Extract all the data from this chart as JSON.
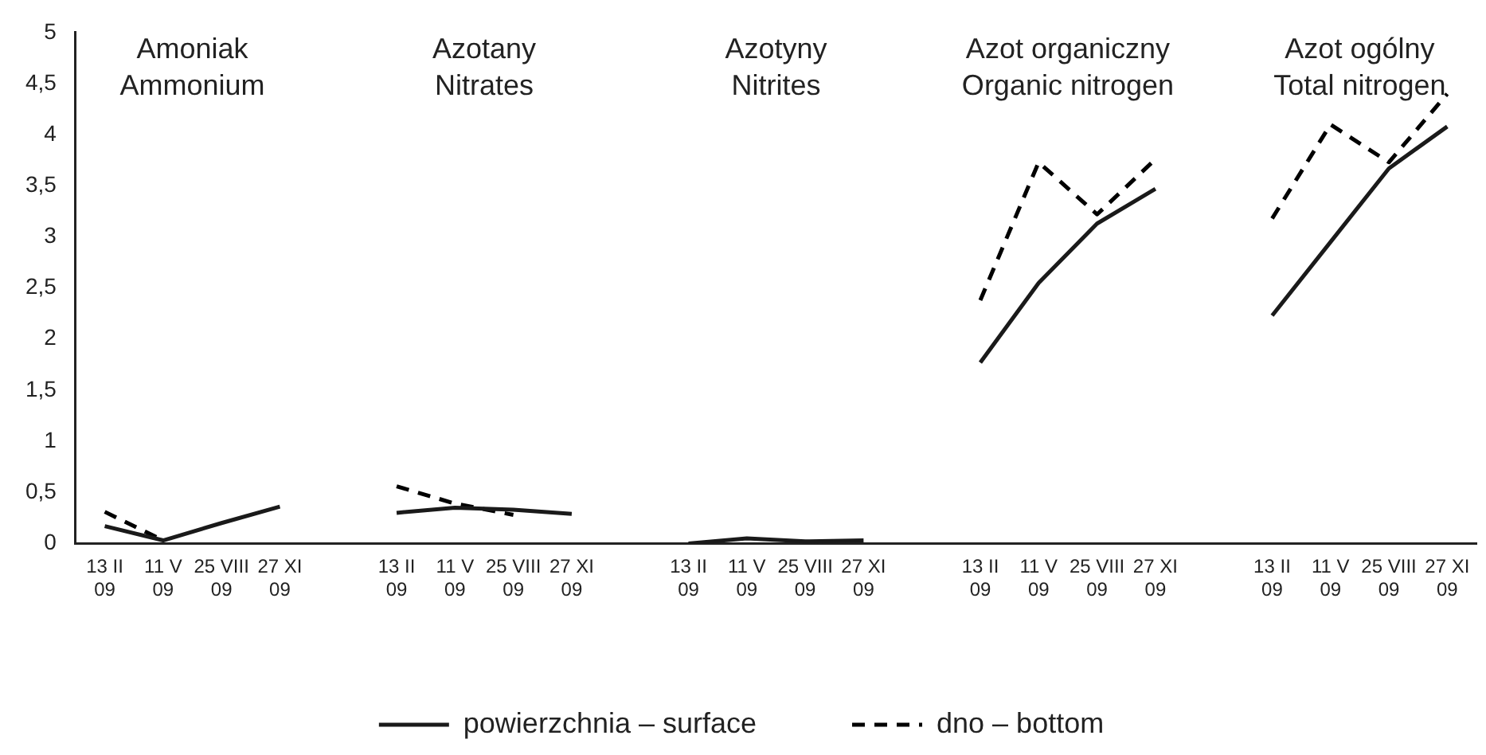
{
  "chart_data": {
    "type": "line",
    "categories": [
      "13 II\n09",
      "11 V\n09",
      "25 VIII\n09",
      "27 XI\n09",
      null,
      "13 II\n09",
      "11 V\n09",
      "25 VIII\n09",
      "27 XI\n09",
      null,
      "13 II\n09",
      "11 V\n09",
      "25 VIII\n09",
      "27 XI\n09",
      null,
      "13 II\n09",
      "11 V\n09",
      "25 VIII\n09",
      "27 XI\n09",
      null,
      "13 II\n09",
      "11 V\n09",
      "25 VIII\n09",
      "27 XI\n09"
    ],
    "series": [
      {
        "name": "powierzchnia – surface",
        "color": "#1a1a1a",
        "line_style": "solid",
        "values": [
          0.17,
          0.03,
          0.2,
          0.36,
          null,
          0.3,
          0.35,
          0.33,
          0.29,
          null,
          0,
          0.05,
          0.02,
          0.03,
          null,
          1.77,
          2.55,
          3.13,
          3.47,
          null,
          2.23,
          2.95,
          3.67,
          4.08
        ]
      },
      {
        "name": "dno – bottom",
        "color": "#000000",
        "line_style": "dashed",
        "values": [
          0.31,
          0.03,
          null,
          null,
          null,
          0.56,
          0.39,
          0.28,
          null,
          null,
          null,
          null,
          null,
          null,
          null,
          2.38,
          3.73,
          3.22,
          3.76,
          null,
          3.18,
          4.1,
          3.73,
          4.4
        ]
      }
    ],
    "ylim": [
      0,
      5
    ],
    "yticks": [
      0,
      {
        "value": 0.5,
        "label": "0,5"
      },
      1,
      {
        "value": 1.5,
        "label": "1,5"
      },
      2,
      {
        "value": 2.5,
        "label": "2,5"
      },
      3,
      {
        "value": 3.5,
        "label": "3,5"
      },
      4,
      {
        "value": 4.5,
        "label": "4,5"
      },
      5
    ],
    "annotations": [
      "Amoniak\nAmmonium",
      "Azotany\nNitrates",
      "Azotyny\nNitrites",
      "Azot organiczny\nOrganic nitrogen",
      "Azot ogólny\nTotal nitrogen"
    ],
    "grid": false,
    "marker": "none",
    "legend": "bottom"
  }
}
